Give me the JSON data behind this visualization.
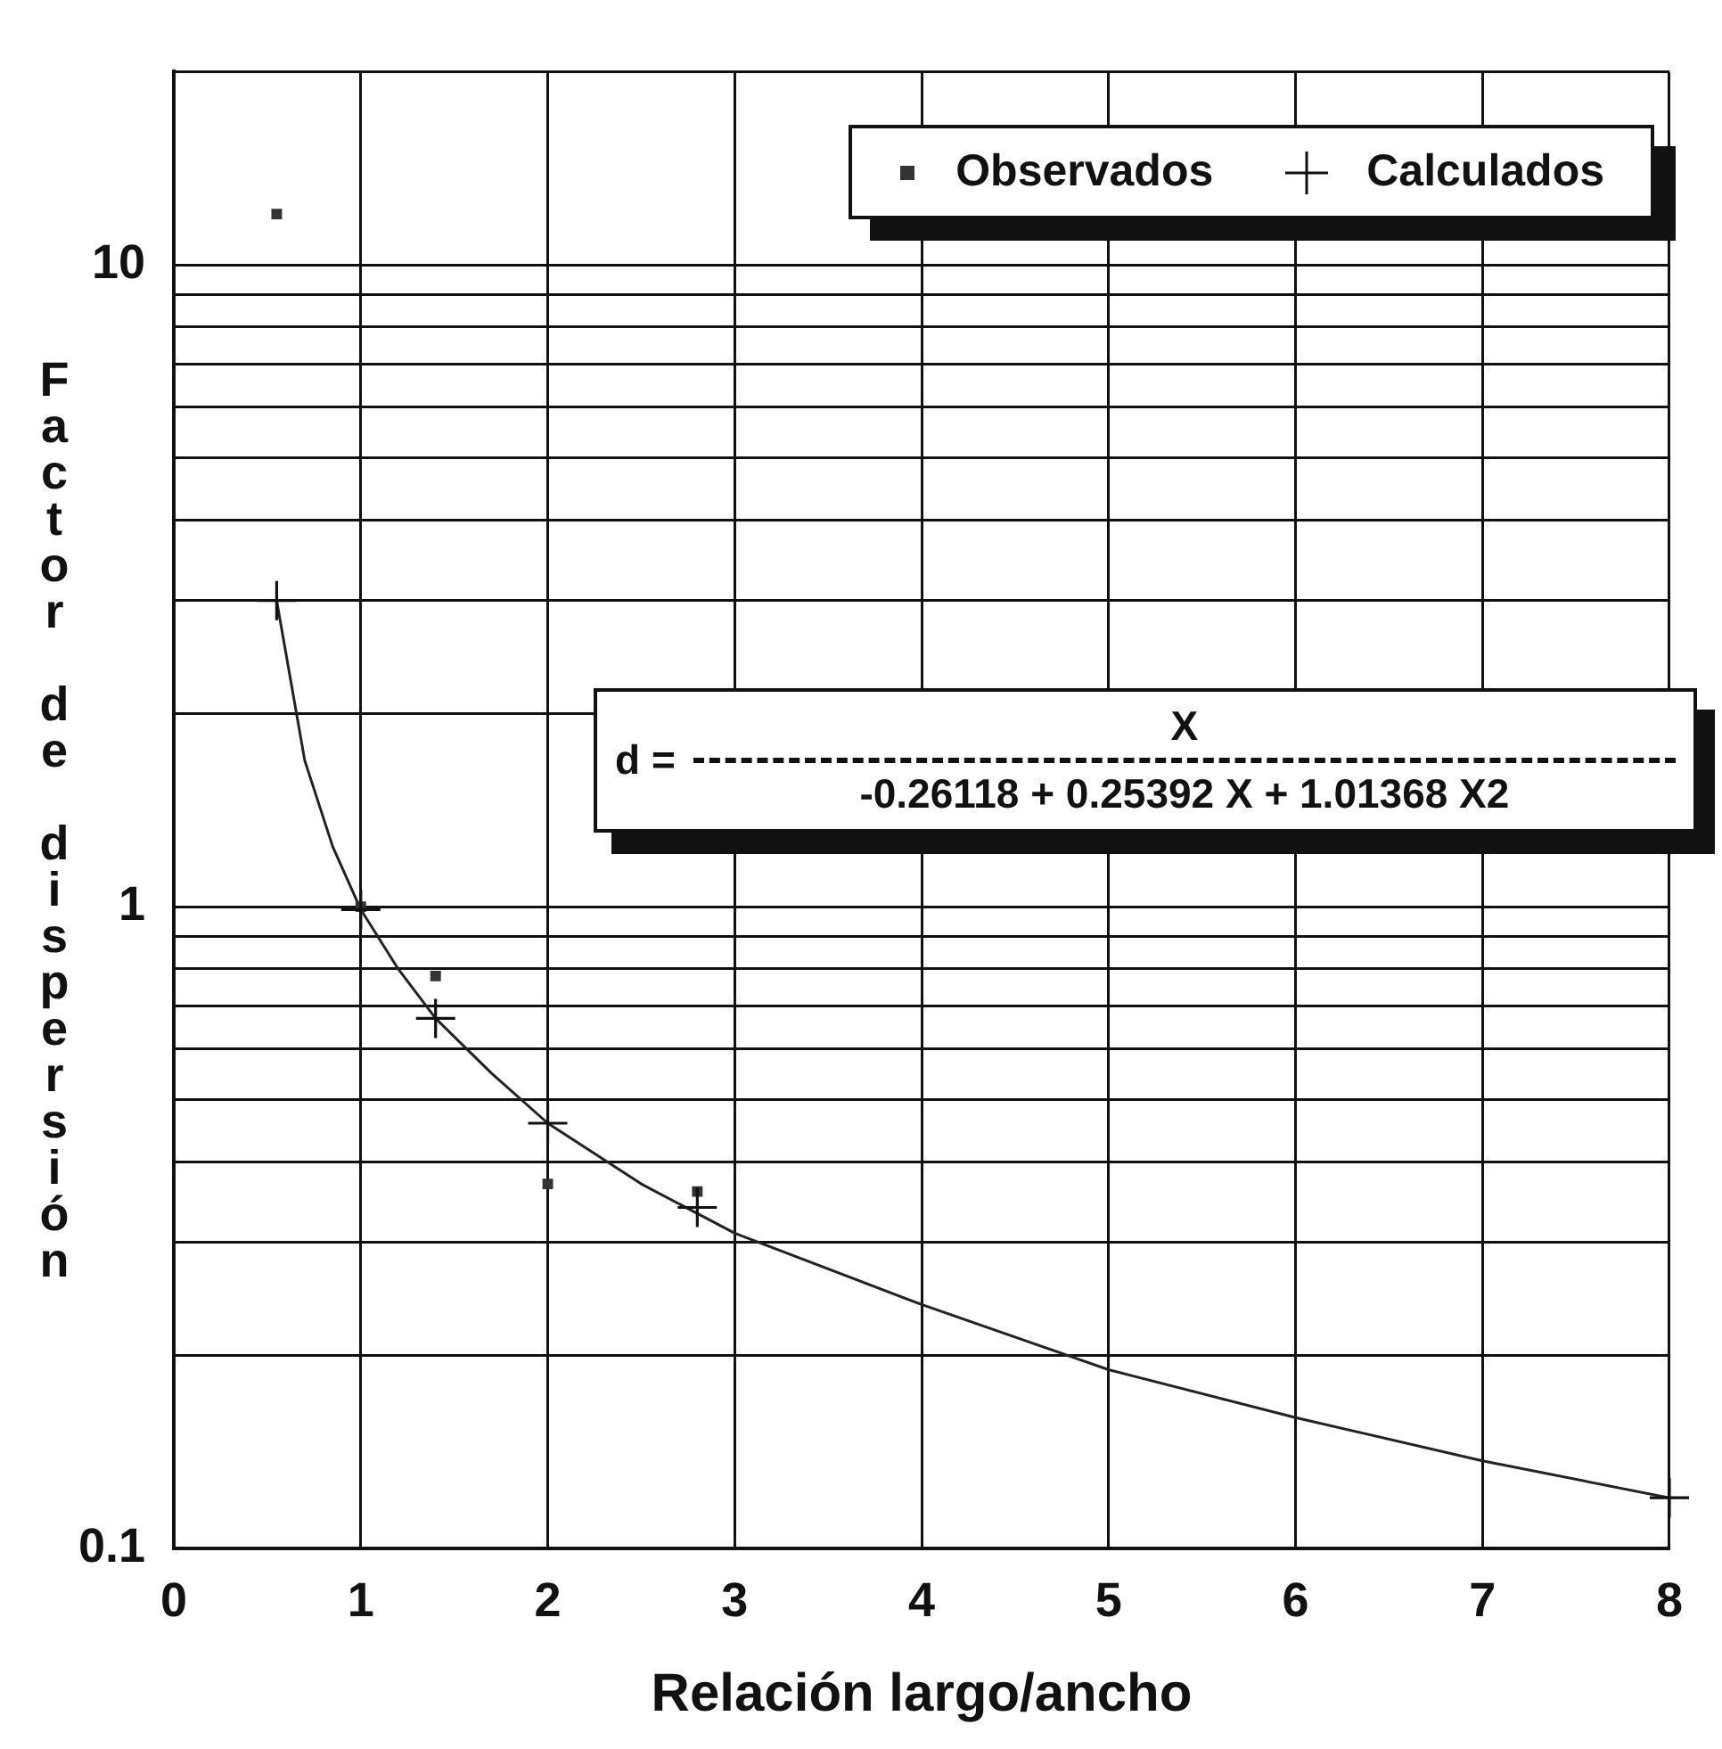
{
  "chart_data": {
    "type": "scatter",
    "xlabel": "Relación largo/ancho",
    "ylabel": "Factor de dispersión",
    "xlim": [
      0,
      8
    ],
    "xticks": [
      0,
      1,
      2,
      3,
      4,
      5,
      6,
      7,
      8
    ],
    "ylim": [
      0.1,
      20
    ],
    "yticks": [
      0.1,
      {
        "value": 0.2,
        "label": null
      },
      {
        "value": 0.3,
        "label": null
      },
      {
        "value": 0.4,
        "label": null
      },
      {
        "value": 0.5,
        "label": null
      },
      {
        "value": 0.6,
        "label": null
      },
      {
        "value": 0.7,
        "label": null
      },
      {
        "value": 0.8,
        "label": null
      },
      {
        "value": 0.9,
        "label": null
      },
      1,
      {
        "value": 2,
        "label": null
      },
      {
        "value": 3,
        "label": null
      },
      {
        "value": 4,
        "label": null
      },
      {
        "value": 5,
        "label": null
      },
      {
        "value": 6,
        "label": null
      },
      {
        "value": 7,
        "label": null
      },
      {
        "value": 8,
        "label": null
      },
      {
        "value": 9,
        "label": null
      },
      10,
      {
        "value": 20,
        "label": null
      }
    ],
    "log": "y",
    "grid": true,
    "legend": "top right",
    "annotations": [
      "d =",
      "X",
      "-0.26118 + 0.25392 X + 1.01368 X2"
    ],
    "series": [
      {
        "name": "Observados",
        "marker": "square",
        "color": "#333333",
        "x": [
          0.55,
          1,
          1.4,
          2,
          2.8
        ],
        "values": [
          12,
          1.0,
          0.78,
          0.37,
          0.36
        ]
      },
      {
        "name": "Calculados",
        "marker": "cross",
        "color": "#111111",
        "x": [
          0.55,
          1,
          1.4,
          2,
          2.8,
          8
        ],
        "values": [
          3.0,
          0.99,
          0.67,
          0.46,
          0.34,
          0.12
        ]
      },
      {
        "type": "line",
        "marker": "none",
        "color": "#222222",
        "x": [
          0.55,
          0.7,
          0.85,
          1,
          1.2,
          1.4,
          1.7,
          2,
          2.5,
          3,
          4,
          5,
          6,
          7,
          8
        ],
        "values": [
          3.0,
          1.69,
          1.24,
          0.99,
          0.8,
          0.67,
          0.55,
          0.46,
          0.37,
          0.31,
          0.24,
          0.19,
          0.16,
          0.137,
          0.12
        ]
      }
    ]
  }
}
